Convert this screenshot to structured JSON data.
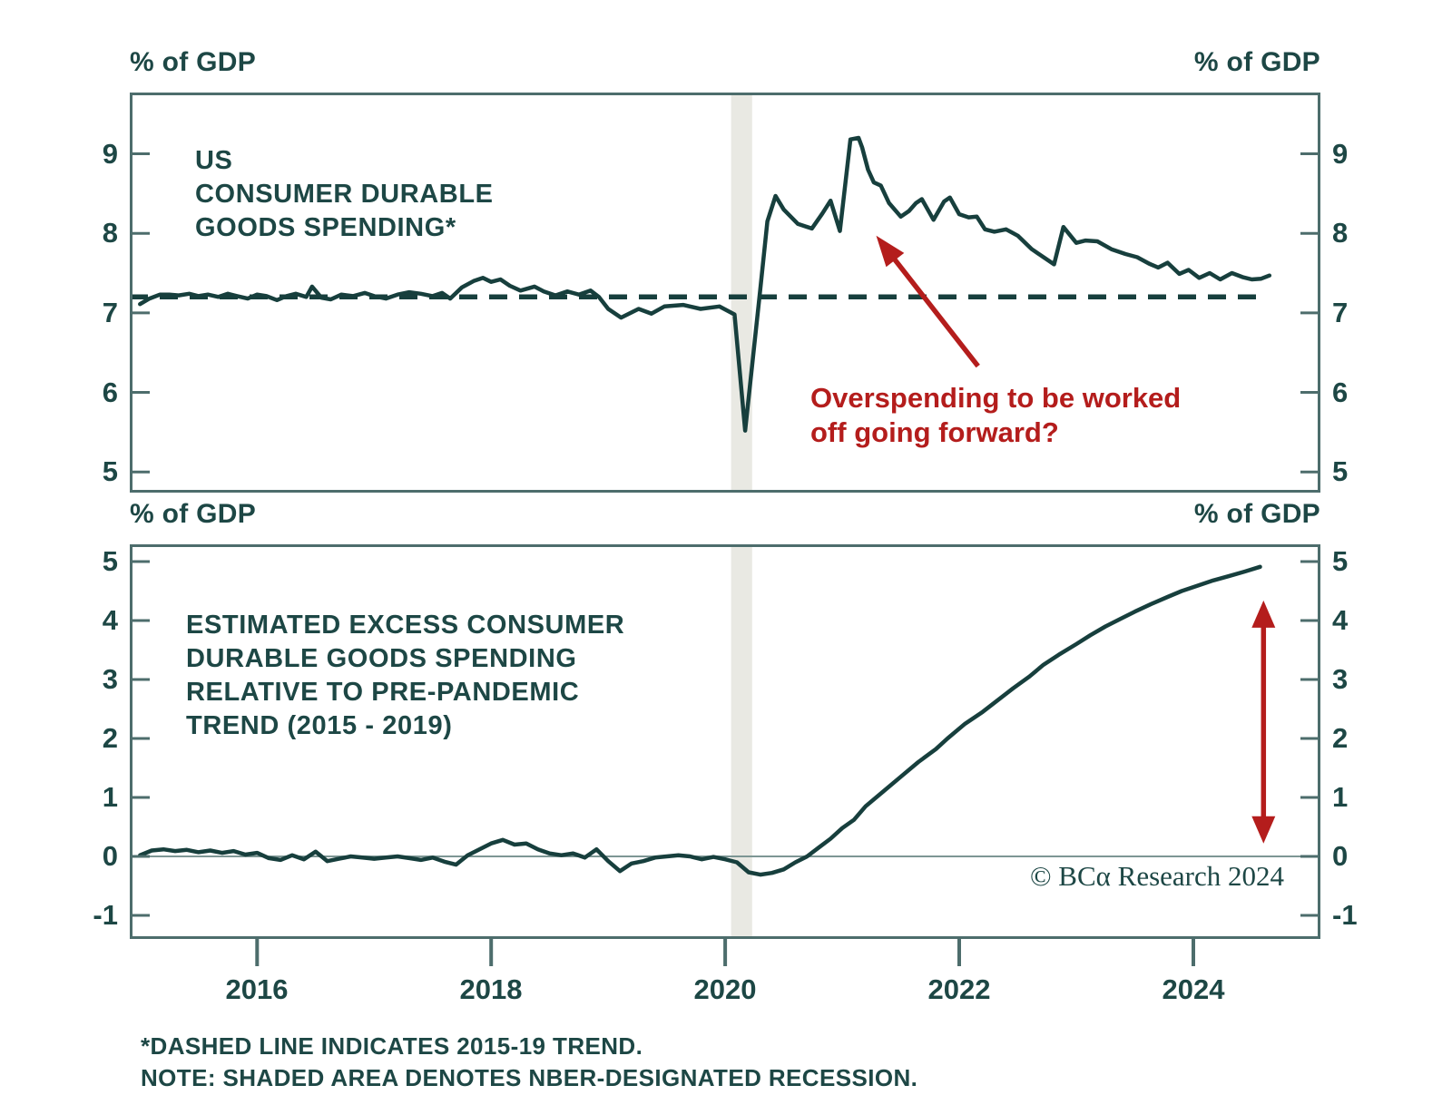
{
  "copyright": "© BCα Research 2024",
  "footnotes": [
    "*DASHED LINE INDICATES 2015-19 TREND.",
    "NOTE: SHADED AREA DENOTES NBER-DESIGNATED RECESSION."
  ],
  "colors": {
    "ink": "#1d4745",
    "line": "#173f3d",
    "frame": "#4d6d6c",
    "band": "#e9e9e3",
    "zero_line": "#7d9694",
    "red": "#b41d1c",
    "background": "#ffffff"
  },
  "chart_data": [
    {
      "id": "us-consumer-durable-goods-spending",
      "type": "line",
      "title_lines": [
        "US",
        "CONSUMER DURABLE",
        "GOODS SPENDING*"
      ],
      "unit_left": "% of GDP",
      "unit_right": "% of GDP",
      "xlim": [
        2014.912,
        2025.086
      ],
      "ylim": [
        4.74,
        9.77
      ],
      "y_ticks": [
        9,
        8,
        7,
        6,
        5
      ],
      "grid": "off",
      "legend": "none",
      "trend_line": {
        "value": 7.2,
        "x_start": 2014.912,
        "x_end": 2024.57,
        "style": "dashed",
        "meaning": "2015-19 trend"
      },
      "recession_band": {
        "x_start": 2020.05,
        "x_end": 2020.23,
        "meaning": "NBER-designated recession"
      },
      "annotation": {
        "lines": [
          "Overspending to be worked",
          "off going forward?"
        ],
        "arrow_from": [
          2022.16,
          6.33
        ],
        "arrow_to": [
          2021.29,
          7.97
        ]
      },
      "series": [
        {
          "name": "US consumer durable goods spending (% of GDP)",
          "points": [
            [
              2015.0,
              7.11
            ],
            [
              2015.08,
              7.18
            ],
            [
              2015.17,
              7.23
            ],
            [
              2015.25,
              7.23
            ],
            [
              2015.33,
              7.22
            ],
            [
              2015.42,
              7.24
            ],
            [
              2015.5,
              7.21
            ],
            [
              2015.58,
              7.23
            ],
            [
              2015.67,
              7.2
            ],
            [
              2015.75,
              7.24
            ],
            [
              2015.83,
              7.21
            ],
            [
              2015.92,
              7.18
            ],
            [
              2016.0,
              7.23
            ],
            [
              2016.08,
              7.21
            ],
            [
              2016.17,
              7.16
            ],
            [
              2016.25,
              7.21
            ],
            [
              2016.33,
              7.24
            ],
            [
              2016.42,
              7.2
            ],
            [
              2016.47,
              7.33
            ],
            [
              2016.55,
              7.19
            ],
            [
              2016.63,
              7.17
            ],
            [
              2016.72,
              7.23
            ],
            [
              2016.82,
              7.21
            ],
            [
              2016.92,
              7.25
            ],
            [
              2017.0,
              7.21
            ],
            [
              2017.1,
              7.18
            ],
            [
              2017.2,
              7.23
            ],
            [
              2017.3,
              7.26
            ],
            [
              2017.4,
              7.24
            ],
            [
              2017.5,
              7.21
            ],
            [
              2017.58,
              7.25
            ],
            [
              2017.65,
              7.18
            ],
            [
              2017.75,
              7.32
            ],
            [
              2017.85,
              7.4
            ],
            [
              2017.93,
              7.44
            ],
            [
              2018.0,
              7.39
            ],
            [
              2018.08,
              7.42
            ],
            [
              2018.16,
              7.34
            ],
            [
              2018.25,
              7.28
            ],
            [
              2018.37,
              7.33
            ],
            [
              2018.45,
              7.27
            ],
            [
              2018.55,
              7.22
            ],
            [
              2018.65,
              7.27
            ],
            [
              2018.75,
              7.23
            ],
            [
              2018.85,
              7.28
            ],
            [
              2018.92,
              7.2
            ],
            [
              2019.0,
              7.05
            ],
            [
              2019.11,
              6.94
            ],
            [
              2019.26,
              7.05
            ],
            [
              2019.37,
              6.99
            ],
            [
              2019.48,
              7.08
            ],
            [
              2019.64,
              7.1
            ],
            [
              2019.79,
              7.05
            ],
            [
              2019.95,
              7.08
            ],
            [
              2020.08,
              6.98
            ],
            [
              2020.17,
              5.52
            ],
            [
              2020.3,
              7.3
            ],
            [
              2020.36,
              8.15
            ],
            [
              2020.43,
              8.47
            ],
            [
              2020.5,
              8.3
            ],
            [
              2020.62,
              8.12
            ],
            [
              2020.74,
              8.06
            ],
            [
              2020.83,
              8.25
            ],
            [
              2020.9,
              8.41
            ],
            [
              2020.98,
              8.03
            ],
            [
              2021.07,
              9.18
            ],
            [
              2021.14,
              9.2
            ],
            [
              2021.17,
              9.08
            ],
            [
              2021.22,
              8.8
            ],
            [
              2021.27,
              8.64
            ],
            [
              2021.33,
              8.6
            ],
            [
              2021.4,
              8.38
            ],
            [
              2021.5,
              8.21
            ],
            [
              2021.57,
              8.28
            ],
            [
              2021.63,
              8.38
            ],
            [
              2021.68,
              8.43
            ],
            [
              2021.78,
              8.17
            ],
            [
              2021.87,
              8.4
            ],
            [
              2021.92,
              8.45
            ],
            [
              2022.0,
              8.24
            ],
            [
              2022.08,
              8.2
            ],
            [
              2022.15,
              8.21
            ],
            [
              2022.22,
              8.05
            ],
            [
              2022.3,
              8.02
            ],
            [
              2022.4,
              8.05
            ],
            [
              2022.5,
              7.97
            ],
            [
              2022.62,
              7.8
            ],
            [
              2022.72,
              7.7
            ],
            [
              2022.81,
              7.61
            ],
            [
              2022.89,
              8.08
            ],
            [
              2023.0,
              7.88
            ],
            [
              2023.08,
              7.91
            ],
            [
              2023.18,
              7.9
            ],
            [
              2023.3,
              7.8
            ],
            [
              2023.42,
              7.74
            ],
            [
              2023.52,
              7.7
            ],
            [
              2023.62,
              7.62
            ],
            [
              2023.7,
              7.57
            ],
            [
              2023.78,
              7.63
            ],
            [
              2023.88,
              7.49
            ],
            [
              2023.96,
              7.54
            ],
            [
              2024.05,
              7.44
            ],
            [
              2024.14,
              7.5
            ],
            [
              2024.23,
              7.42
            ],
            [
              2024.33,
              7.5
            ],
            [
              2024.42,
              7.45
            ],
            [
              2024.5,
              7.42
            ],
            [
              2024.58,
              7.43
            ],
            [
              2024.65,
              7.47
            ]
          ]
        }
      ]
    },
    {
      "id": "estimated-excess-durable-goods-spending",
      "type": "line",
      "title_lines": [
        "ESTIMATED EXCESS CONSUMER",
        "DURABLE GOODS SPENDING",
        "RELATIVE TO PRE-PANDEMIC",
        "TREND (2015 - 2019)"
      ],
      "unit_left": "% of GDP",
      "unit_right": "% of GDP",
      "xlim": [
        2014.912,
        2025.086
      ],
      "ylim": [
        -1.4,
        5.292
      ],
      "y_ticks": [
        5,
        4,
        3,
        2,
        1,
        0,
        -1
      ],
      "x_ticks": [
        2016,
        2018,
        2020,
        2022,
        2024
      ],
      "grid": "off",
      "legend": "none",
      "zero_line": 0,
      "recession_band": {
        "x_start": 2020.05,
        "x_end": 2020.23,
        "meaning": "NBER-designated recession"
      },
      "gap_arrow": {
        "x": 2024.6,
        "y_from": 0.22,
        "y_to": 4.34,
        "style": "double-headed"
      },
      "series": [
        {
          "name": "Estimated excess consumer durable goods spending vs pre-pandemic trend (% of GDP)",
          "points": [
            [
              2015.0,
              0.02
            ],
            [
              2015.1,
              0.1
            ],
            [
              2015.2,
              0.12
            ],
            [
              2015.3,
              0.09
            ],
            [
              2015.4,
              0.11
            ],
            [
              2015.5,
              0.07
            ],
            [
              2015.6,
              0.1
            ],
            [
              2015.7,
              0.06
            ],
            [
              2015.8,
              0.09
            ],
            [
              2015.9,
              0.03
            ],
            [
              2016.0,
              0.06
            ],
            [
              2016.1,
              -0.03
            ],
            [
              2016.2,
              -0.06
            ],
            [
              2016.3,
              0.02
            ],
            [
              2016.4,
              -0.05
            ],
            [
              2016.5,
              0.08
            ],
            [
              2016.6,
              -0.08
            ],
            [
              2016.7,
              -0.04
            ],
            [
              2016.8,
              0.0
            ],
            [
              2016.9,
              -0.02
            ],
            [
              2017.0,
              -0.04
            ],
            [
              2017.1,
              -0.02
            ],
            [
              2017.2,
              0.0
            ],
            [
              2017.3,
              -0.03
            ],
            [
              2017.4,
              -0.06
            ],
            [
              2017.5,
              -0.02
            ],
            [
              2017.6,
              -0.09
            ],
            [
              2017.7,
              -0.14
            ],
            [
              2017.8,
              0.02
            ],
            [
              2017.9,
              0.12
            ],
            [
              2018.0,
              0.22
            ],
            [
              2018.1,
              0.28
            ],
            [
              2018.2,
              0.2
            ],
            [
              2018.3,
              0.22
            ],
            [
              2018.4,
              0.12
            ],
            [
              2018.5,
              0.05
            ],
            [
              2018.6,
              0.02
            ],
            [
              2018.7,
              0.05
            ],
            [
              2018.8,
              -0.02
            ],
            [
              2018.9,
              0.12
            ],
            [
              2019.0,
              -0.08
            ],
            [
              2019.1,
              -0.25
            ],
            [
              2019.2,
              -0.12
            ],
            [
              2019.3,
              -0.08
            ],
            [
              2019.4,
              -0.02
            ],
            [
              2019.5,
              0.0
            ],
            [
              2019.6,
              0.02
            ],
            [
              2019.7,
              0.0
            ],
            [
              2019.8,
              -0.05
            ],
            [
              2019.9,
              -0.01
            ],
            [
              2020.0,
              -0.05
            ],
            [
              2020.1,
              -0.1
            ],
            [
              2020.2,
              -0.27
            ],
            [
              2020.3,
              -0.31
            ],
            [
              2020.4,
              -0.28
            ],
            [
              2020.5,
              -0.22
            ],
            [
              2020.6,
              -0.1
            ],
            [
              2020.7,
              0.0
            ],
            [
              2020.8,
              0.15
            ],
            [
              2020.9,
              0.3
            ],
            [
              2021.0,
              0.48
            ],
            [
              2021.1,
              0.62
            ],
            [
              2021.2,
              0.85
            ],
            [
              2021.35,
              1.1
            ],
            [
              2021.5,
              1.35
            ],
            [
              2021.65,
              1.6
            ],
            [
              2021.8,
              1.82
            ],
            [
              2021.9,
              2.0
            ],
            [
              2022.05,
              2.25
            ],
            [
              2022.2,
              2.45
            ],
            [
              2022.33,
              2.65
            ],
            [
              2022.46,
              2.85
            ],
            [
              2022.6,
              3.05
            ],
            [
              2022.72,
              3.25
            ],
            [
              2022.85,
              3.42
            ],
            [
              2023.0,
              3.6
            ],
            [
              2023.12,
              3.75
            ],
            [
              2023.25,
              3.9
            ],
            [
              2023.38,
              4.03
            ],
            [
              2023.5,
              4.15
            ],
            [
              2023.64,
              4.28
            ],
            [
              2023.78,
              4.4
            ],
            [
              2023.9,
              4.5
            ],
            [
              2024.05,
              4.6
            ],
            [
              2024.17,
              4.68
            ],
            [
              2024.3,
              4.75
            ],
            [
              2024.44,
              4.83
            ],
            [
              2024.57,
              4.91
            ]
          ]
        }
      ]
    }
  ]
}
